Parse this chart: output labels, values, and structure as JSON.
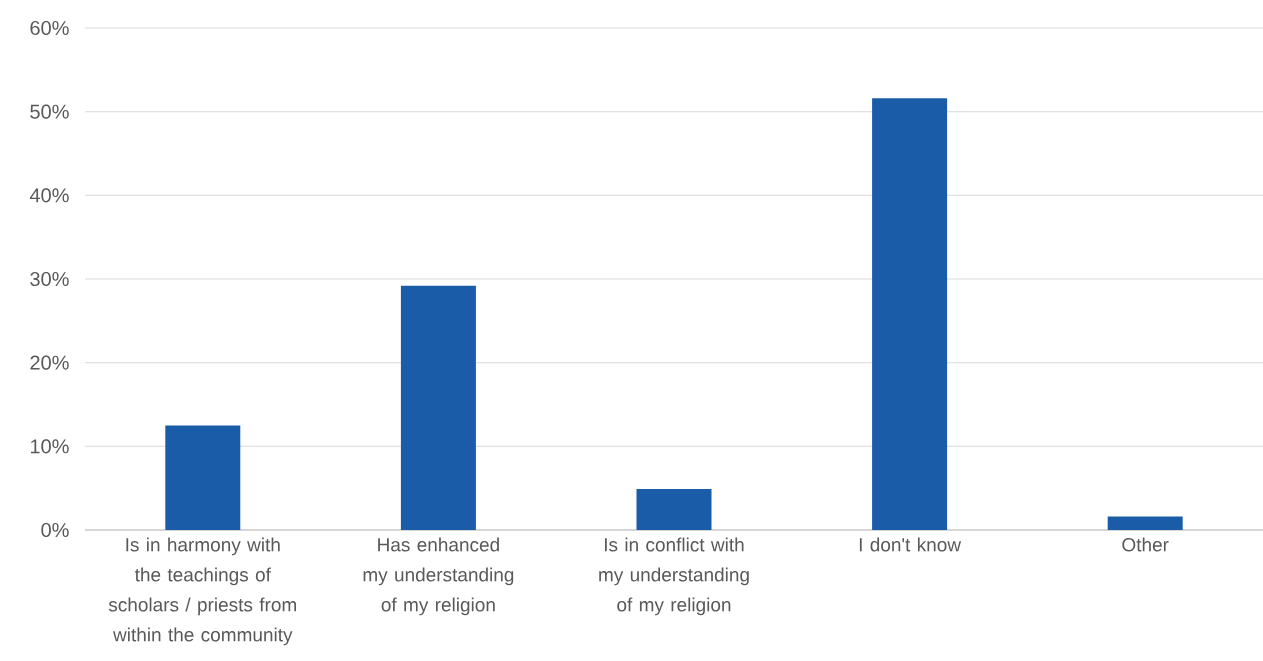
{
  "chart_data": {
    "type": "bar",
    "categories": [
      "Is in harmony with the teachings of scholars / priests from within the community",
      "Has enhanced my understanding of my religion",
      "Is in conflict with my understanding of my religion",
      "I don't know",
      "Other"
    ],
    "values": [
      12.5,
      29.2,
      4.9,
      51.6,
      1.6
    ],
    "color": "#1a5ca8",
    "ylim": [
      0,
      60
    ],
    "yticks": [
      {
        "value": 0,
        "label": "0%"
      },
      {
        "value": 10,
        "label": "10%"
      },
      {
        "value": 20,
        "label": "20%"
      },
      {
        "value": 30,
        "label": "30%"
      },
      {
        "value": 40,
        "label": "40%"
      },
      {
        "value": 50,
        "label": "50%"
      },
      {
        "value": 60,
        "label": "60%"
      }
    ],
    "grid": "y"
  }
}
